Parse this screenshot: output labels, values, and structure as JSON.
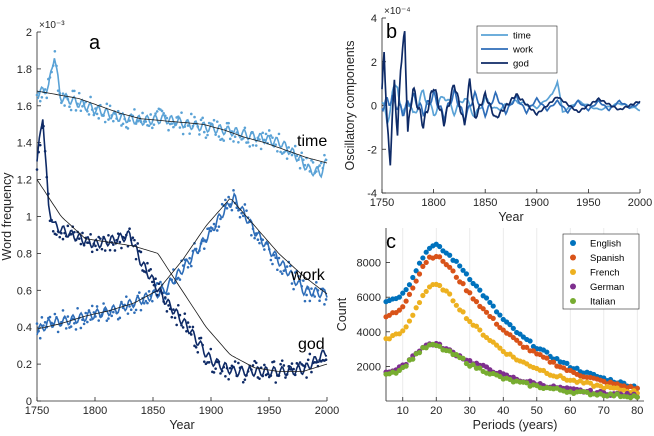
{
  "chart_data": [
    {
      "panel": "a",
      "type": "scatter",
      "xlabel": "Year",
      "ylabel": "Word frequency",
      "exponent_label": "×10⁻³",
      "xlim": [
        1750,
        2000
      ],
      "ylim": [
        0,
        2
      ],
      "xticks": [
        1750,
        1800,
        1850,
        1900,
        1950,
        2000
      ],
      "yticks": [
        0,
        0.2,
        0.4,
        0.6,
        0.8,
        1,
        1.2,
        1.4,
        1.6,
        1.8,
        2
      ],
      "series": [
        {
          "name": "time",
          "color": "#5aa2d6",
          "x": [
            1750,
            1760,
            1765,
            1770,
            1780,
            1800,
            1820,
            1840,
            1860,
            1880,
            1900,
            1920,
            1940,
            1960,
            1975,
            1985,
            1995,
            2000
          ],
          "values": [
            1.66,
            1.7,
            1.88,
            1.65,
            1.63,
            1.58,
            1.54,
            1.52,
            1.53,
            1.5,
            1.48,
            1.46,
            1.43,
            1.4,
            1.32,
            1.25,
            1.24,
            1.3
          ],
          "trend": [
            1.68,
            1.66,
            1.64,
            1.6,
            1.56,
            1.53,
            1.52,
            1.51,
            1.5,
            1.47,
            1.43,
            1.4,
            1.36,
            1.32,
            1.29
          ]
        },
        {
          "name": "work",
          "color": "#2e6db8",
          "x": [
            1750,
            1760,
            1780,
            1800,
            1820,
            1840,
            1860,
            1880,
            1900,
            1910,
            1920,
            1930,
            1940,
            1960,
            1980,
            2000
          ],
          "values": [
            0.38,
            0.42,
            0.44,
            0.47,
            0.5,
            0.55,
            0.6,
            0.75,
            0.92,
            1.02,
            1.1,
            1.0,
            0.9,
            0.75,
            0.6,
            0.58
          ],
          "trend": [
            0.39,
            0.42,
            0.46,
            0.49,
            0.53,
            0.6,
            0.76,
            0.95,
            1.1,
            0.95,
            0.8,
            0.68,
            0.58
          ]
        },
        {
          "name": "god",
          "color": "#0e2a66",
          "x": [
            1750,
            1755,
            1760,
            1765,
            1780,
            1800,
            1820,
            1830,
            1840,
            1850,
            1860,
            1880,
            1900,
            1920,
            1940,
            1960,
            1980,
            2000
          ],
          "values": [
            1.3,
            1.55,
            1.05,
            0.95,
            0.9,
            0.85,
            0.88,
            0.9,
            0.75,
            0.65,
            0.55,
            0.4,
            0.22,
            0.16,
            0.16,
            0.16,
            0.17,
            0.27
          ],
          "trend": [
            1.2,
            1.0,
            0.88,
            0.86,
            0.84,
            0.8,
            0.6,
            0.4,
            0.25,
            0.18,
            0.16,
            0.16,
            0.2
          ]
        }
      ]
    },
    {
      "panel": "b",
      "type": "line",
      "xlabel": "Year",
      "ylabel": "Oscillatory components",
      "exponent_label": "×10⁻⁴",
      "xlim": [
        1750,
        2000
      ],
      "ylim": [
        -4,
        4
      ],
      "xticks": [
        1750,
        1800,
        1850,
        1900,
        1950,
        2000
      ],
      "yticks": [
        -4,
        -2,
        0,
        2,
        4
      ],
      "legend_position": "top-center",
      "series": [
        {
          "name": "time",
          "color": "#5aa2d6",
          "x": [
            1750,
            1755,
            1760,
            1765,
            1770,
            1775,
            1780,
            1790,
            1800,
            1810,
            1820,
            1830,
            1840,
            1850,
            1860,
            1880,
            1900,
            1915,
            1920,
            1925,
            1940,
            1960,
            1980,
            2000
          ],
          "values": [
            0.2,
            -0.8,
            0.5,
            1.0,
            -0.6,
            0.3,
            -0.5,
            0.6,
            -0.4,
            0.5,
            -0.3,
            0.4,
            -0.5,
            0.3,
            -0.2,
            0.2,
            -0.1,
            0.5,
            1.1,
            -0.3,
            0.2,
            -0.2,
            0.1,
            -0.2
          ]
        },
        {
          "name": "work",
          "color": "#2e6db8",
          "x": [
            1750,
            1760,
            1770,
            1780,
            1790,
            1800,
            1810,
            1820,
            1830,
            1840,
            1850,
            1860,
            1870,
            1880,
            1890,
            1900,
            1910,
            1920,
            1930,
            1940,
            1950,
            1960,
            1970,
            1980,
            1990,
            2000
          ],
          "values": [
            0.0,
            0.3,
            -0.3,
            0.4,
            -0.3,
            0.5,
            -0.5,
            0.6,
            -0.6,
            0.5,
            -0.4,
            0.5,
            -0.3,
            0.4,
            -0.3,
            0.3,
            -0.2,
            0.2,
            -0.3,
            0.2,
            -0.2,
            0.2,
            -0.2,
            0.2,
            -0.1,
            0.1
          ]
        },
        {
          "name": "god",
          "color": "#0e2a66",
          "x": [
            1750,
            1752,
            1755,
            1758,
            1762,
            1765,
            1768,
            1772,
            1775,
            1780,
            1790,
            1800,
            1810,
            1820,
            1830,
            1835,
            1840,
            1850,
            1860,
            1880,
            1900,
            1920,
            1940,
            1960,
            1980,
            2000
          ],
          "values": [
            0.5,
            2.6,
            -1.0,
            -2.5,
            1.2,
            -1.5,
            1.8,
            3.3,
            -1.2,
            0.8,
            -0.9,
            0.9,
            -0.8,
            1.0,
            -0.9,
            1.2,
            -0.6,
            0.5,
            -0.6,
            0.5,
            -0.4,
            0.4,
            -0.3,
            0.3,
            -0.2,
            0.2
          ]
        }
      ]
    },
    {
      "panel": "c",
      "type": "scatter",
      "xlabel": "Periods (years)",
      "ylabel": "Count",
      "xlim": [
        5,
        82
      ],
      "ylim": [
        0,
        10000
      ],
      "xticks": [
        10,
        20,
        30,
        40,
        50,
        60,
        70,
        80
      ],
      "yticks": [
        2000,
        4000,
        6000,
        8000
      ],
      "legend_position": "top-right",
      "series": [
        {
          "name": "English",
          "color": "#0072bd",
          "x": [
            5,
            8,
            10,
            12,
            14,
            16,
            18,
            20,
            22,
            24,
            26,
            28,
            30,
            35,
            40,
            45,
            50,
            55,
            60,
            65,
            70,
            75,
            80
          ],
          "values": [
            5800,
            5950,
            6200,
            6800,
            7600,
            8300,
            8900,
            9000,
            8700,
            8400,
            8000,
            7600,
            7100,
            5900,
            4700,
            3800,
            3100,
            2500,
            2000,
            1600,
            1300,
            1050,
            800
          ]
        },
        {
          "name": "Spanish",
          "color": "#d95319",
          "x": [
            5,
            8,
            10,
            12,
            14,
            16,
            18,
            20,
            22,
            24,
            26,
            28,
            30,
            35,
            40,
            45,
            50,
            55,
            60,
            65,
            70,
            75,
            80
          ],
          "values": [
            4900,
            5100,
            5400,
            6200,
            7000,
            7800,
            8300,
            8400,
            8100,
            7700,
            7200,
            6700,
            6200,
            5100,
            4100,
            3300,
            2700,
            2200,
            1700,
            1400,
            1100,
            900,
            700
          ]
        },
        {
          "name": "French",
          "color": "#edb120",
          "x": [
            5,
            8,
            10,
            12,
            14,
            16,
            18,
            20,
            22,
            24,
            26,
            28,
            30,
            35,
            40,
            45,
            50,
            55,
            60,
            65,
            70,
            75,
            80
          ],
          "values": [
            3600,
            3800,
            4000,
            4600,
            5400,
            6100,
            6600,
            6700,
            6500,
            6100,
            5600,
            5100,
            4600,
            3700,
            2900,
            2300,
            1900,
            1500,
            1200,
            1000,
            800,
            650,
            500
          ]
        },
        {
          "name": "German",
          "color": "#7e2f8e",
          "x": [
            5,
            8,
            10,
            12,
            14,
            16,
            18,
            20,
            22,
            24,
            26,
            28,
            30,
            35,
            40,
            45,
            50,
            55,
            60,
            65,
            70,
            75,
            80
          ],
          "values": [
            1700,
            1800,
            2000,
            2400,
            2800,
            3100,
            3300,
            3300,
            3100,
            2900,
            2700,
            2500,
            2300,
            1900,
            1500,
            1200,
            1000,
            800,
            650,
            550,
            450,
            380,
            300
          ]
        },
        {
          "name": "Italian",
          "color": "#77ac30",
          "x": [
            5,
            8,
            10,
            12,
            14,
            16,
            18,
            20,
            22,
            24,
            26,
            28,
            30,
            35,
            40,
            45,
            50,
            55,
            60,
            65,
            70,
            75,
            80
          ],
          "values": [
            1600,
            1700,
            1900,
            2300,
            2700,
            3000,
            3200,
            3200,
            3000,
            2800,
            2600,
            2400,
            2100,
            1700,
            1300,
            1050,
            850,
            700,
            550,
            450,
            380,
            320,
            260
          ]
        }
      ]
    }
  ]
}
